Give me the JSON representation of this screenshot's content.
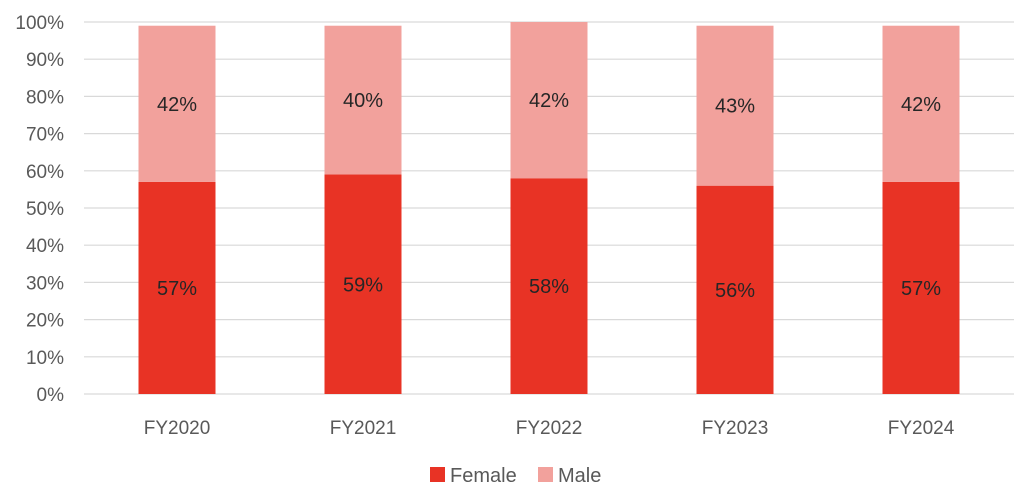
{
  "chart_data": {
    "type": "bar",
    "stacked": true,
    "categories": [
      "FY2020",
      "FY2021",
      "FY2022",
      "FY2023",
      "FY2024"
    ],
    "series": [
      {
        "name": "Female",
        "values": [
          57,
          59,
          58,
          56,
          57
        ],
        "labels": [
          "57%",
          "59%",
          "58%",
          "56%",
          "57%"
        ],
        "color": "#e83325"
      },
      {
        "name": "Male",
        "values": [
          42,
          40,
          42,
          43,
          42
        ],
        "labels": [
          "42%",
          "40%",
          "42%",
          "43%",
          "42%"
        ],
        "color": "#f2a19c"
      }
    ],
    "yticks": [
      "0%",
      "10%",
      "20%",
      "30%",
      "40%",
      "50%",
      "60%",
      "70%",
      "80%",
      "90%",
      "100%"
    ],
    "ylim": [
      0,
      100
    ],
    "grid": true,
    "gridColor": "#d9d9d9",
    "legend": "bottom-center"
  }
}
